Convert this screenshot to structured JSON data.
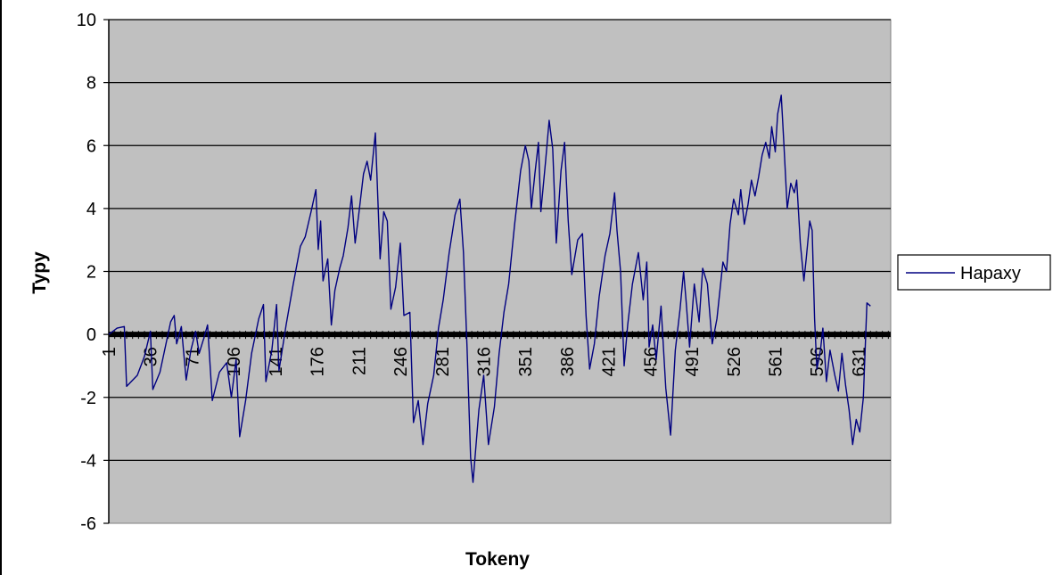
{
  "chart_data": {
    "type": "line",
    "title": "",
    "xlabel": "Tokeny",
    "ylabel": "Typy",
    "ylim": [
      -6,
      10
    ],
    "yticks": [
      -6,
      -4,
      -2,
      0,
      2,
      4,
      6,
      8,
      10
    ],
    "xlim": [
      1,
      658
    ],
    "xtick_labels": [
      "1",
      "36",
      "71",
      "106",
      "141",
      "176",
      "211",
      "246",
      "281",
      "316",
      "351",
      "386",
      "421",
      "456",
      "491",
      "526",
      "561",
      "596",
      "631"
    ],
    "grid": true,
    "legend_position": "right",
    "plot_background": "#c0c0c0",
    "series": [
      {
        "name": "Hapaxy",
        "color": "#000080",
        "points": [
          [
            1,
            0
          ],
          [
            8,
            0.2
          ],
          [
            14,
            0.25
          ],
          [
            16,
            -1.65
          ],
          [
            25,
            -1.3
          ],
          [
            31,
            -0.7
          ],
          [
            36,
            0.1
          ],
          [
            38,
            -1.75
          ],
          [
            44,
            -1.2
          ],
          [
            53,
            0.4
          ],
          [
            56,
            0.6
          ],
          [
            58,
            -0.3
          ],
          [
            62,
            0.25
          ],
          [
            66,
            -1.45
          ],
          [
            70,
            -0.5
          ],
          [
            74,
            0.1
          ],
          [
            77,
            -0.6
          ],
          [
            81,
            -0.1
          ],
          [
            84,
            0.3
          ],
          [
            88,
            -2.1
          ],
          [
            94,
            -1.2
          ],
          [
            100,
            -0.9
          ],
          [
            104,
            -2.0
          ],
          [
            108,
            -0.8
          ],
          [
            111,
            -3.25
          ],
          [
            116,
            -2.1
          ],
          [
            121,
            -0.6
          ],
          [
            127,
            0.5
          ],
          [
            131,
            0.95
          ],
          [
            133,
            -1.5
          ],
          [
            138,
            -0.5
          ],
          [
            142,
            0.95
          ],
          [
            144,
            -1.15
          ],
          [
            150,
            0.3
          ],
          [
            156,
            1.6
          ],
          [
            162,
            2.8
          ],
          [
            166,
            3.1
          ],
          [
            171,
            3.9
          ],
          [
            175,
            4.6
          ],
          [
            177,
            2.7
          ],
          [
            179,
            3.6
          ],
          [
            181,
            1.7
          ],
          [
            185,
            2.4
          ],
          [
            188,
            0.3
          ],
          [
            191,
            1.4
          ],
          [
            195,
            2.1
          ],
          [
            198,
            2.5
          ],
          [
            202,
            3.4
          ],
          [
            205,
            4.4
          ],
          [
            208,
            2.9
          ],
          [
            211,
            3.8
          ],
          [
            215,
            5.1
          ],
          [
            218,
            5.5
          ],
          [
            221,
            4.9
          ],
          [
            225,
            6.4
          ],
          [
            229,
            2.4
          ],
          [
            232,
            3.9
          ],
          [
            235,
            3.6
          ],
          [
            238,
            0.8
          ],
          [
            242,
            1.5
          ],
          [
            246,
            2.9
          ],
          [
            249,
            0.6
          ],
          [
            254,
            0.7
          ],
          [
            257,
            -2.8
          ],
          [
            261,
            -2.1
          ],
          [
            265,
            -3.5
          ],
          [
            269,
            -2.2
          ],
          [
            274,
            -1.3
          ],
          [
            278,
            0.2
          ],
          [
            282,
            1.1
          ],
          [
            287,
            2.6
          ],
          [
            292,
            3.8
          ],
          [
            296,
            4.3
          ],
          [
            299,
            2.6
          ],
          [
            302,
            -0.4
          ],
          [
            305,
            -3.9
          ],
          [
            307,
            -4.7
          ],
          [
            312,
            -2.4
          ],
          [
            316,
            -1.3
          ],
          [
            320,
            -3.5
          ],
          [
            325,
            -2.3
          ],
          [
            329,
            -0.6
          ],
          [
            333,
            0.7
          ],
          [
            337,
            1.6
          ],
          [
            342,
            3.5
          ],
          [
            347,
            5.2
          ],
          [
            351,
            6.0
          ],
          [
            354,
            5.5
          ],
          [
            356,
            4.0
          ],
          [
            359,
            5.1
          ],
          [
            362,
            6.1
          ],
          [
            364,
            3.9
          ],
          [
            368,
            5.5
          ],
          [
            371,
            6.8
          ],
          [
            374,
            5.9
          ],
          [
            377,
            2.9
          ],
          [
            381,
            5.2
          ],
          [
            384,
            6.1
          ],
          [
            387,
            3.6
          ],
          [
            390,
            1.9
          ],
          [
            395,
            3.0
          ],
          [
            399,
            3.2
          ],
          [
            402,
            0.6
          ],
          [
            405,
            -1.1
          ],
          [
            409,
            -0.3
          ],
          [
            413,
            1.2
          ],
          [
            418,
            2.5
          ],
          [
            422,
            3.2
          ],
          [
            426,
            4.5
          ],
          [
            428,
            3.3
          ],
          [
            431,
            2.0
          ],
          [
            434,
            -1.0
          ],
          [
            437,
            0.3
          ],
          [
            441,
            1.6
          ],
          [
            446,
            2.6
          ],
          [
            450,
            1.1
          ],
          [
            453,
            2.3
          ],
          [
            455,
            -0.4
          ],
          [
            458,
            0.3
          ],
          [
            461,
            -0.8
          ],
          [
            465,
            0.9
          ],
          [
            469,
            -1.7
          ],
          [
            473,
            -3.2
          ],
          [
            477,
            -0.5
          ],
          [
            481,
            0.8
          ],
          [
            484,
            2.0
          ],
          [
            486,
            1.1
          ],
          [
            489,
            -0.4
          ],
          [
            493,
            1.6
          ],
          [
            497,
            0.4
          ],
          [
            500,
            2.1
          ],
          [
            504,
            1.6
          ],
          [
            508,
            -0.3
          ],
          [
            512,
            0.5
          ],
          [
            517,
            2.3
          ],
          [
            520,
            2.0
          ],
          [
            523,
            3.5
          ],
          [
            526,
            4.3
          ],
          [
            530,
            3.8
          ],
          [
            532,
            4.6
          ],
          [
            535,
            3.5
          ],
          [
            538,
            4.1
          ],
          [
            541,
            4.9
          ],
          [
            544,
            4.4
          ],
          [
            547,
            5.0
          ],
          [
            550,
            5.7
          ],
          [
            553,
            6.1
          ],
          [
            556,
            5.6
          ],
          [
            558,
            6.6
          ],
          [
            561,
            5.8
          ],
          [
            563,
            7.0
          ],
          [
            566,
            7.6
          ],
          [
            568,
            6.2
          ],
          [
            571,
            4.0
          ],
          [
            574,
            4.8
          ],
          [
            577,
            4.5
          ],
          [
            579,
            4.9
          ],
          [
            582,
            2.9
          ],
          [
            585,
            1.7
          ],
          [
            587,
            2.4
          ],
          [
            590,
            3.6
          ],
          [
            592,
            3.3
          ],
          [
            594,
            0.5
          ],
          [
            596,
            -1.1
          ],
          [
            599,
            -0.5
          ],
          [
            601,
            0.2
          ],
          [
            604,
            -1.5
          ],
          [
            607,
            -0.5
          ],
          [
            611,
            -1.3
          ],
          [
            614,
            -1.8
          ],
          [
            617,
            -0.6
          ],
          [
            620,
            -1.6
          ],
          [
            623,
            -2.4
          ],
          [
            626,
            -3.5
          ],
          [
            629,
            -2.7
          ],
          [
            632,
            -3.1
          ],
          [
            635,
            -2.0
          ],
          [
            638,
            1.0
          ],
          [
            641,
            0.9
          ]
        ]
      }
    ]
  }
}
